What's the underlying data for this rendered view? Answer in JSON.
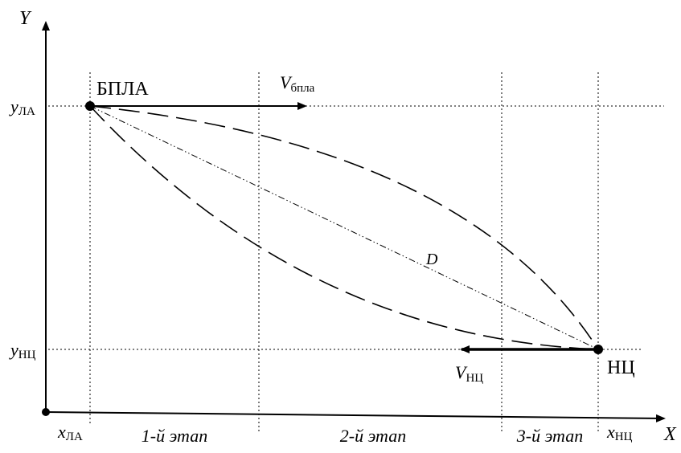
{
  "axes": {
    "x_label": "X",
    "y_label": "Y",
    "x_uav": {
      "main": "x",
      "sub": "ЛА"
    },
    "x_target": {
      "main": "x",
      "sub": "НЦ"
    },
    "y_uav": {
      "main": "y",
      "sub": "ЛА"
    },
    "y_target": {
      "main": "y",
      "sub": "НЦ"
    }
  },
  "points": {
    "uav_label": "БПЛА",
    "target_label": "НЦ"
  },
  "vectors": {
    "uav_velocity": {
      "main": "V",
      "sub": "бпла"
    },
    "target_velocity": {
      "main": "V",
      "sub": "НЦ"
    }
  },
  "distance_label": "D",
  "stages": [
    "1-й этап",
    "2-й этап",
    "3-й этап"
  ]
}
